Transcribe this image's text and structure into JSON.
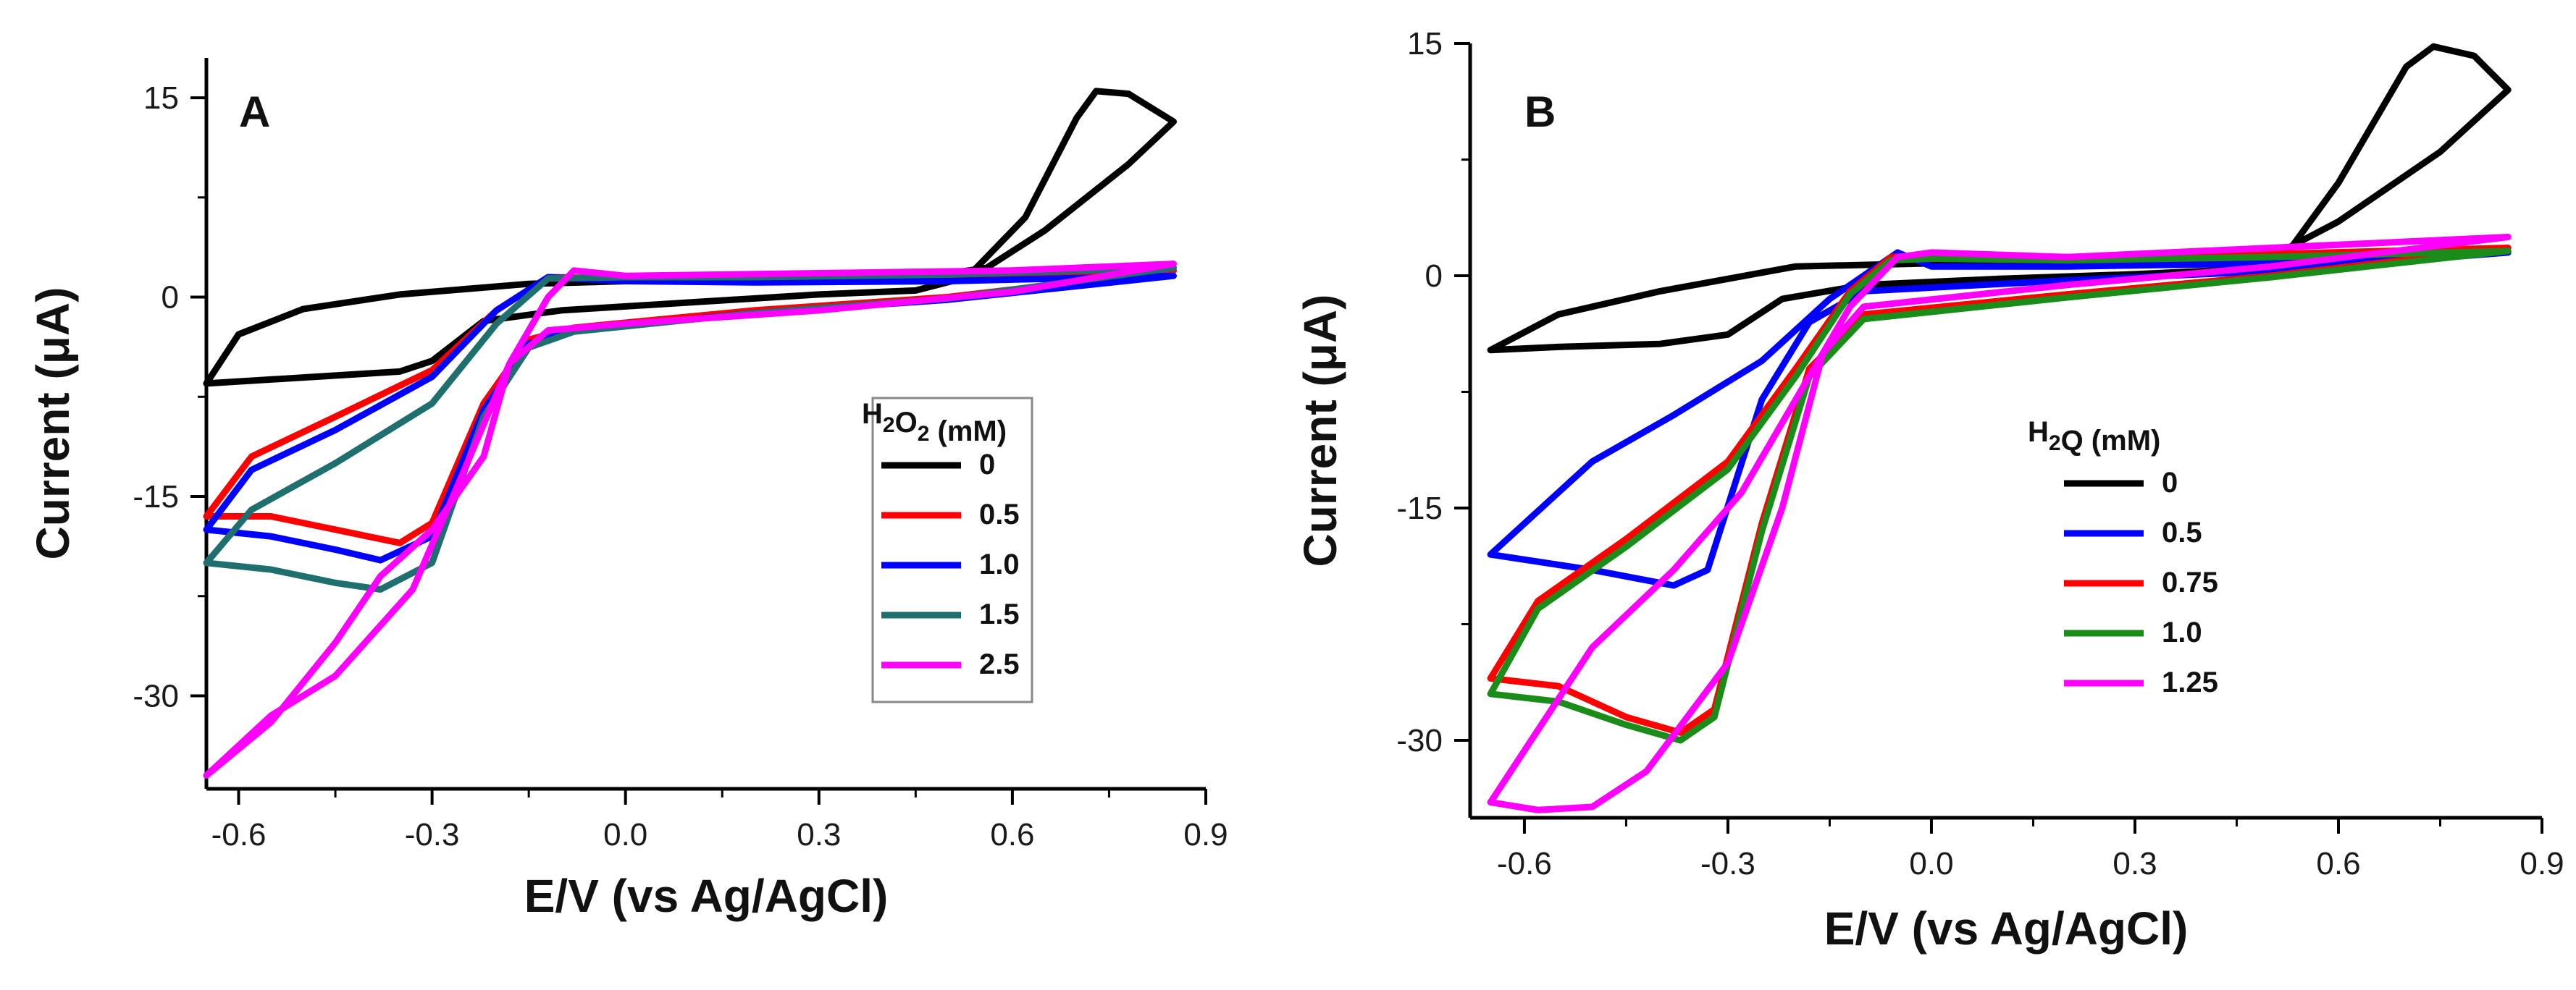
{
  "chart_data": [
    {
      "type": "line",
      "panel_label": "A",
      "xlabel": "E/V (vs Ag/AgCl)",
      "ylabel": "Current (μA)",
      "xlim": [
        -0.65,
        0.9
      ],
      "ylim": [
        -37,
        18
      ],
      "xticks": [
        -0.6,
        -0.3,
        0.0,
        0.3,
        0.6,
        0.9
      ],
      "xtick_labels": [
        "-0.6",
        "-0.3",
        "0.0",
        "0.3",
        "0.6",
        "0.9"
      ],
      "yticks": [
        15,
        0,
        -15,
        -30
      ],
      "ytick_labels": [
        "15",
        "0",
        "-15",
        "-30"
      ],
      "legend_title": "H2O2 (mM)",
      "legend_title_main": "H",
      "legend_title_sub": "2",
      "legend_title_mid": "O",
      "legend_title_sub2": "2",
      "legend_title_end": " (mM)",
      "legend_position": "right-center",
      "series": [
        {
          "name": "0",
          "color": "#000000",
          "points": [
            [
              0.0,
              1.2
            ],
            [
              -0.15,
              1.0
            ],
            [
              -0.35,
              0.2
            ],
            [
              -0.5,
              -0.9
            ],
            [
              -0.6,
              -2.8
            ],
            [
              -0.65,
              -6.5
            ],
            [
              -0.55,
              -6.2
            ],
            [
              -0.35,
              -5.6
            ],
            [
              -0.3,
              -4.8
            ],
            [
              -0.22,
              -1.8
            ],
            [
              -0.1,
              -1.0
            ],
            [
              0.1,
              -0.4
            ],
            [
              0.3,
              0.2
            ],
            [
              0.45,
              0.5
            ],
            [
              0.53,
              1.5
            ],
            [
              0.62,
              6.0
            ],
            [
              0.7,
              13.5
            ],
            [
              0.73,
              15.5
            ],
            [
              0.78,
              15.3
            ],
            [
              0.85,
              13.2
            ],
            [
              0.78,
              10.0
            ],
            [
              0.65,
              5.0
            ],
            [
              0.56,
              2.2
            ],
            [
              0.45,
              1.4
            ],
            [
              0.3,
              1.2
            ],
            [
              0.0,
              1.3
            ]
          ]
        },
        {
          "name": "0.5",
          "color": "#ff0000",
          "points": [
            [
              -0.12,
              1.5
            ],
            [
              -0.2,
              -1.0
            ],
            [
              -0.3,
              -5.5
            ],
            [
              -0.45,
              -9.0
            ],
            [
              -0.58,
              -12.0
            ],
            [
              -0.65,
              -16.5
            ],
            [
              -0.55,
              -16.5
            ],
            [
              -0.45,
              -17.5
            ],
            [
              -0.35,
              -18.5
            ],
            [
              -0.3,
              -17.0
            ],
            [
              -0.22,
              -8.0
            ],
            [
              -0.15,
              -3.2
            ],
            [
              -0.08,
              -2.3
            ],
            [
              0.2,
              -1.0
            ],
            [
              0.5,
              0.0
            ],
            [
              0.85,
              2.0
            ],
            [
              0.5,
              1.4
            ],
            [
              0.2,
              1.3
            ],
            [
              0.0,
              1.4
            ],
            [
              -0.12,
              1.5
            ]
          ]
        },
        {
          "name": "1.0",
          "color": "#0000ff",
          "points": [
            [
              -0.12,
              1.5
            ],
            [
              -0.2,
              -1.0
            ],
            [
              -0.3,
              -6.0
            ],
            [
              -0.45,
              -10.0
            ],
            [
              -0.58,
              -13.0
            ],
            [
              -0.65,
              -17.5
            ],
            [
              -0.55,
              -18.0
            ],
            [
              -0.45,
              -19.0
            ],
            [
              -0.38,
              -19.8
            ],
            [
              -0.3,
              -18.0
            ],
            [
              -0.22,
              -8.5
            ],
            [
              -0.15,
              -3.5
            ],
            [
              -0.08,
              -2.5
            ],
            [
              0.2,
              -1.2
            ],
            [
              0.5,
              -0.2
            ],
            [
              0.85,
              1.6
            ],
            [
              0.5,
              1.2
            ],
            [
              0.2,
              1.1
            ],
            [
              0.0,
              1.2
            ],
            [
              -0.12,
              1.5
            ]
          ]
        },
        {
          "name": "1.5",
          "color": "#1f6f6f",
          "points": [
            [
              -0.12,
              1.4
            ],
            [
              -0.2,
              -2.0
            ],
            [
              -0.3,
              -8.0
            ],
            [
              -0.45,
              -12.5
            ],
            [
              -0.58,
              -16.0
            ],
            [
              -0.65,
              -20.0
            ],
            [
              -0.55,
              -20.5
            ],
            [
              -0.45,
              -21.5
            ],
            [
              -0.38,
              -22.0
            ],
            [
              -0.3,
              -20.0
            ],
            [
              -0.22,
              -9.0
            ],
            [
              -0.15,
              -3.8
            ],
            [
              -0.08,
              -2.6
            ],
            [
              0.2,
              -1.2
            ],
            [
              0.5,
              -0.1
            ],
            [
              0.85,
              2.2
            ],
            [
              0.5,
              1.7
            ],
            [
              0.2,
              1.5
            ],
            [
              0.0,
              1.5
            ],
            [
              -0.12,
              1.4
            ]
          ]
        },
        {
          "name": "2.5",
          "color": "#ff00ff",
          "points": [
            [
              -0.08,
              2.0
            ],
            [
              -0.12,
              0.0
            ],
            [
              -0.18,
              -5.0
            ],
            [
              -0.25,
              -13.0
            ],
            [
              -0.33,
              -22.0
            ],
            [
              -0.45,
              -28.5
            ],
            [
              -0.55,
              -31.5
            ],
            [
              -0.65,
              -36.0
            ],
            [
              -0.55,
              -32.0
            ],
            [
              -0.45,
              -26.0
            ],
            [
              -0.38,
              -21.0
            ],
            [
              -0.3,
              -17.5
            ],
            [
              -0.22,
              -12.0
            ],
            [
              -0.18,
              -5.0
            ],
            [
              -0.12,
              -2.5
            ],
            [
              0.0,
              -2.0
            ],
            [
              0.3,
              -1.0
            ],
            [
              0.6,
              0.4
            ],
            [
              0.85,
              2.5
            ],
            [
              0.6,
              2.0
            ],
            [
              0.3,
              1.8
            ],
            [
              0.0,
              1.6
            ],
            [
              -0.08,
              2.0
            ]
          ]
        }
      ]
    },
    {
      "type": "line",
      "panel_label": "B",
      "xlabel": "E/V (vs Ag/AgCl)",
      "ylabel": "Current (μA)",
      "xlim": [
        -0.68,
        0.9
      ],
      "ylim": [
        -35,
        15
      ],
      "xticks": [
        -0.6,
        -0.3,
        0.0,
        0.3,
        0.6,
        0.9
      ],
      "xtick_labels": [
        "-0.6",
        "-0.3",
        "0.0",
        "0.3",
        "0.6",
        "0.9"
      ],
      "yticks": [
        15,
        0,
        -15,
        -30
      ],
      "ytick_labels": [
        "15",
        "0",
        "-15",
        "-30"
      ],
      "legend_title": "H2Q (mM)",
      "legend_title_main": "H",
      "legend_title_sub": "2",
      "legend_title_end": "Q (mM)",
      "legend_position": "center",
      "series": [
        {
          "name": "0",
          "color": "#000000",
          "points": [
            [
              0.0,
              0.8
            ],
            [
              -0.2,
              0.6
            ],
            [
              -0.4,
              -1.0
            ],
            [
              -0.55,
              -2.5
            ],
            [
              -0.65,
              -4.8
            ],
            [
              -0.55,
              -4.6
            ],
            [
              -0.4,
              -4.4
            ],
            [
              -0.3,
              -3.8
            ],
            [
              -0.22,
              -1.5
            ],
            [
              -0.1,
              -0.6
            ],
            [
              0.1,
              -0.2
            ],
            [
              0.3,
              0.1
            ],
            [
              0.45,
              0.4
            ],
            [
              0.53,
              1.8
            ],
            [
              0.6,
              6.0
            ],
            [
              0.7,
              13.5
            ],
            [
              0.74,
              14.8
            ],
            [
              0.8,
              14.2
            ],
            [
              0.85,
              12.0
            ],
            [
              0.75,
              8.0
            ],
            [
              0.6,
              3.5
            ],
            [
              0.5,
              1.2
            ],
            [
              0.3,
              1.0
            ],
            [
              0.0,
              0.8
            ]
          ]
        },
        {
          "name": "0.5",
          "color": "#0000ff",
          "points": [
            [
              -0.05,
              1.5
            ],
            [
              -0.15,
              -1.5
            ],
            [
              -0.25,
              -5.5
            ],
            [
              -0.38,
              -9.0
            ],
            [
              -0.5,
              -12.0
            ],
            [
              -0.65,
              -18.0
            ],
            [
              -0.5,
              -19.0
            ],
            [
              -0.38,
              -20.0
            ],
            [
              -0.33,
              -19.0
            ],
            [
              -0.25,
              -8.0
            ],
            [
              -0.18,
              -3.0
            ],
            [
              -0.1,
              -1.0
            ],
            [
              0.2,
              -0.3
            ],
            [
              0.5,
              0.3
            ],
            [
              0.85,
              1.5
            ],
            [
              0.5,
              0.8
            ],
            [
              0.2,
              0.6
            ],
            [
              0.0,
              0.6
            ],
            [
              -0.05,
              1.5
            ]
          ]
        },
        {
          "name": "0.75",
          "color": "#ff0000",
          "points": [
            [
              -0.06,
              1.2
            ],
            [
              -0.12,
              -1.0
            ],
            [
              -0.2,
              -6.0
            ],
            [
              -0.3,
              -12.0
            ],
            [
              -0.45,
              -17.0
            ],
            [
              -0.58,
              -21.0
            ],
            [
              -0.65,
              -26.0
            ],
            [
              -0.55,
              -26.5
            ],
            [
              -0.45,
              -28.5
            ],
            [
              -0.37,
              -29.5
            ],
            [
              -0.32,
              -28.0
            ],
            [
              -0.25,
              -16.0
            ],
            [
              -0.18,
              -6.0
            ],
            [
              -0.1,
              -2.5
            ],
            [
              0.2,
              -1.2
            ],
            [
              0.5,
              0.0
            ],
            [
              0.85,
              1.8
            ],
            [
              0.5,
              1.4
            ],
            [
              0.2,
              1.2
            ],
            [
              0.0,
              1.3
            ],
            [
              -0.06,
              1.2
            ]
          ]
        },
        {
          "name": "1.0",
          "color": "#1a8c1a",
          "points": [
            [
              -0.06,
              1.0
            ],
            [
              -0.12,
              -1.2
            ],
            [
              -0.2,
              -6.5
            ],
            [
              -0.3,
              -12.5
            ],
            [
              -0.45,
              -17.5
            ],
            [
              -0.58,
              -21.5
            ],
            [
              -0.65,
              -27.0
            ],
            [
              -0.55,
              -27.5
            ],
            [
              -0.45,
              -29.0
            ],
            [
              -0.37,
              -30.0
            ],
            [
              -0.32,
              -28.5
            ],
            [
              -0.25,
              -16.5
            ],
            [
              -0.18,
              -6.5
            ],
            [
              -0.1,
              -2.8
            ],
            [
              0.2,
              -1.4
            ],
            [
              0.5,
              -0.1
            ],
            [
              0.85,
              1.6
            ],
            [
              0.5,
              1.2
            ],
            [
              0.2,
              1.0
            ],
            [
              0.0,
              1.1
            ],
            [
              -0.06,
              1.0
            ]
          ]
        },
        {
          "name": "1.25",
          "color": "#ff00ff",
          "points": [
            [
              0.0,
              1.5
            ],
            [
              -0.05,
              1.2
            ],
            [
              -0.12,
              -2.0
            ],
            [
              -0.2,
              -8.0
            ],
            [
              -0.28,
              -14.0
            ],
            [
              -0.38,
              -19.0
            ],
            [
              -0.5,
              -24.0
            ],
            [
              -0.65,
              -34.0
            ],
            [
              -0.58,
              -34.5
            ],
            [
              -0.5,
              -34.3
            ],
            [
              -0.42,
              -32.0
            ],
            [
              -0.3,
              -25.0
            ],
            [
              -0.22,
              -15.0
            ],
            [
              -0.16,
              -5.0
            ],
            [
              -0.1,
              -2.0
            ],
            [
              0.2,
              -0.6
            ],
            [
              0.5,
              0.6
            ],
            [
              0.85,
              2.5
            ],
            [
              0.5,
              1.8
            ],
            [
              0.2,
              1.2
            ],
            [
              0.0,
              1.5
            ]
          ]
        }
      ]
    }
  ]
}
